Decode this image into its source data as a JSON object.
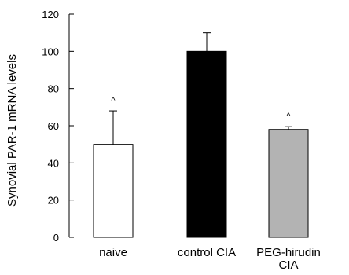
{
  "chart_data": {
    "type": "bar",
    "ylabel": "Synovial PAR-1 mRNA levels",
    "ylim": [
      0,
      120
    ],
    "yticks": [
      0,
      20,
      40,
      60,
      80,
      100,
      120
    ],
    "categories": [
      {
        "label": "naive",
        "label_lines": [
          "naive"
        ]
      },
      {
        "label": "control CIA",
        "label_lines": [
          "control CIA"
        ]
      },
      {
        "label": "PEG-hirudin CIA",
        "label_lines": [
          "PEG-hirudin",
          "CIA"
        ]
      }
    ],
    "values": [
      50,
      100,
      58
    ],
    "errors": [
      18,
      10,
      1.5
    ],
    "significance": [
      "^",
      "",
      "^"
    ],
    "colors": {
      "naive": "#ffffff",
      "control_CIA": "#000000",
      "PEG_hirudin_CIA": "#b3b3b3"
    },
    "grid": false
  }
}
